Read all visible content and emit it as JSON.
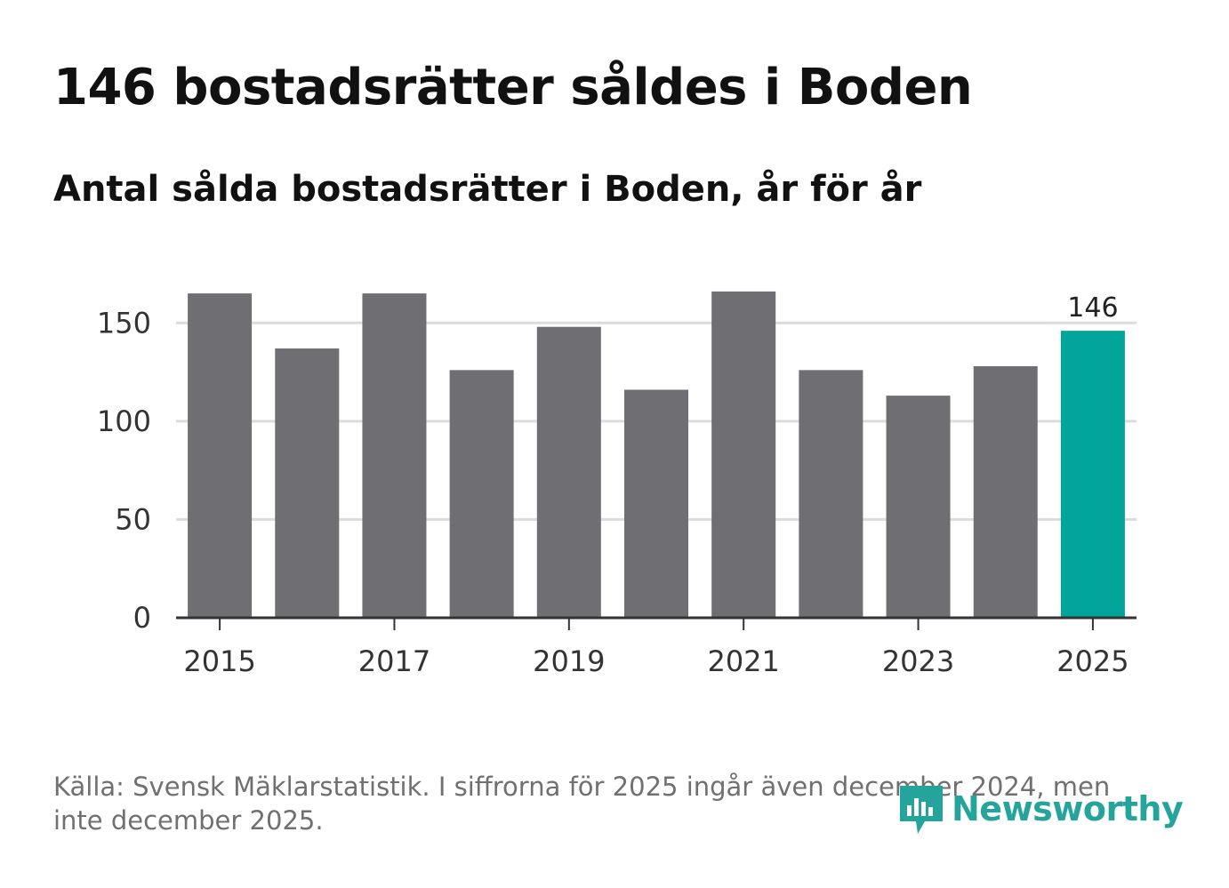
{
  "title": "146 bostadsrätter såldes i Boden",
  "subtitle": "Antal sålda bostadsrätter i Boden, år för år",
  "source": "Källa: Svensk Mäklarstatistik. I siffrorna för 2025 ingår även december 2024, men inte december 2025.",
  "brand": "Newsworthy",
  "colors": {
    "bar": "#6f6e73",
    "highlight": "#00a499",
    "grid": "#dcdcdc",
    "axis": "#333333",
    "brand": "#24a49a"
  },
  "chart_data": {
    "type": "bar",
    "title": "Antal sålda bostadsrätter i Boden, år för år",
    "xlabel": "",
    "ylabel": "",
    "categories": [
      "2015",
      "2016",
      "2017",
      "2018",
      "2019",
      "2020",
      "2021",
      "2022",
      "2023",
      "2024",
      "2025"
    ],
    "values": [
      165,
      137,
      165,
      126,
      148,
      116,
      166,
      126,
      113,
      128,
      146
    ],
    "highlight_index": 10,
    "data_labels": [
      {
        "index": 10,
        "text": "146"
      }
    ],
    "x_tick_labels": [
      "2015",
      "2017",
      "2019",
      "2021",
      "2023",
      "2025"
    ],
    "y_ticks": [
      0,
      50,
      100,
      150
    ],
    "ylim": [
      0,
      175
    ],
    "grid": true
  }
}
